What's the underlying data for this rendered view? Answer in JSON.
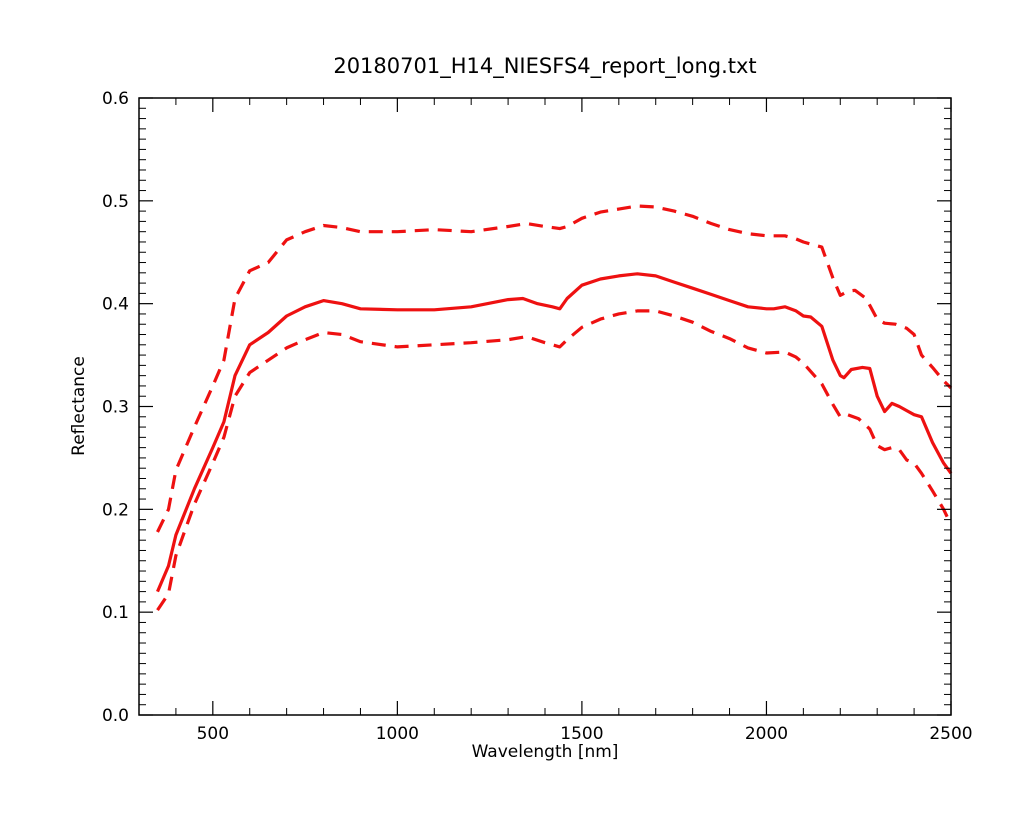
{
  "chart_data": {
    "type": "line",
    "title": "20180701_H14_NIESFS4_report_long.txt",
    "xlabel": "Wavelength [nm]",
    "ylabel": "Reflectance",
    "xlim": [
      300,
      2500
    ],
    "ylim": [
      0.0,
      0.6
    ],
    "x_ticks": [
      500,
      1000,
      1500,
      2000,
      2500
    ],
    "x_tick_labels": [
      "500",
      "1000",
      "1500",
      "2000",
      "2500"
    ],
    "y_ticks": [
      0.0,
      0.1,
      0.2,
      0.3,
      0.4,
      0.5,
      0.6
    ],
    "y_tick_labels": [
      "0.0",
      "0.1",
      "0.2",
      "0.3",
      "0.4",
      "0.5",
      "0.6"
    ],
    "grid": false,
    "legend": "none",
    "color": "#ee1111",
    "series": [
      {
        "style": "solid",
        "x": [
          350,
          380,
          400,
          450,
          500,
          530,
          560,
          600,
          650,
          700,
          750,
          800,
          850,
          900,
          1000,
          1100,
          1200,
          1300,
          1340,
          1380,
          1420,
          1440,
          1460,
          1500,
          1550,
          1600,
          1650,
          1700,
          1750,
          1800,
          1850,
          1900,
          1950,
          2000,
          2020,
          2050,
          2080,
          2100,
          2120,
          2150,
          2180,
          2200,
          2210,
          2230,
          2260,
          2280,
          2300,
          2320,
          2340,
          2360,
          2380,
          2400,
          2420,
          2450,
          2480,
          2500
        ],
        "y": [
          0.12,
          0.145,
          0.175,
          0.22,
          0.26,
          0.285,
          0.33,
          0.36,
          0.372,
          0.388,
          0.397,
          0.403,
          0.4,
          0.395,
          0.394,
          0.394,
          0.397,
          0.404,
          0.405,
          0.4,
          0.397,
          0.395,
          0.405,
          0.418,
          0.424,
          0.427,
          0.429,
          0.427,
          0.421,
          0.415,
          0.409,
          0.403,
          0.397,
          0.395,
          0.395,
          0.397,
          0.393,
          0.388,
          0.387,
          0.378,
          0.345,
          0.33,
          0.328,
          0.336,
          0.338,
          0.337,
          0.31,
          0.295,
          0.303,
          0.3,
          0.296,
          0.292,
          0.29,
          0.265,
          0.245,
          0.235
        ]
      },
      {
        "style": "dashed",
        "x": [
          350,
          380,
          400,
          450,
          500,
          530,
          560,
          600,
          650,
          700,
          750,
          800,
          850,
          900,
          1000,
          1100,
          1200,
          1300,
          1350,
          1400,
          1440,
          1460,
          1500,
          1550,
          1600,
          1650,
          1700,
          1750,
          1800,
          1850,
          1900,
          1950,
          2000,
          2050,
          2080,
          2100,
          2150,
          2180,
          2200,
          2220,
          2240,
          2270,
          2300,
          2320,
          2350,
          2380,
          2400,
          2420,
          2450,
          2480,
          2500
        ],
        "y": [
          0.178,
          0.2,
          0.238,
          0.28,
          0.32,
          0.345,
          0.405,
          0.432,
          0.44,
          0.462,
          0.47,
          0.476,
          0.474,
          0.47,
          0.47,
          0.472,
          0.47,
          0.475,
          0.478,
          0.475,
          0.473,
          0.475,
          0.483,
          0.489,
          0.492,
          0.495,
          0.494,
          0.49,
          0.485,
          0.478,
          0.472,
          0.468,
          0.466,
          0.466,
          0.463,
          0.46,
          0.455,
          0.425,
          0.408,
          0.412,
          0.413,
          0.405,
          0.385,
          0.381,
          0.38,
          0.376,
          0.37,
          0.35,
          0.338,
          0.325,
          0.318
        ]
      },
      {
        "style": "dashed",
        "x": [
          350,
          380,
          400,
          450,
          500,
          530,
          560,
          600,
          650,
          700,
          750,
          800,
          850,
          900,
          1000,
          1100,
          1200,
          1300,
          1350,
          1400,
          1440,
          1460,
          1500,
          1550,
          1600,
          1650,
          1700,
          1750,
          1800,
          1850,
          1900,
          1950,
          2000,
          2050,
          2080,
          2100,
          2150,
          2180,
          2200,
          2220,
          2250,
          2280,
          2300,
          2320,
          2340,
          2360,
          2380,
          2400,
          2420,
          2450,
          2480,
          2500
        ],
        "y": [
          0.102,
          0.118,
          0.155,
          0.205,
          0.245,
          0.27,
          0.31,
          0.333,
          0.345,
          0.357,
          0.365,
          0.372,
          0.37,
          0.363,
          0.358,
          0.36,
          0.362,
          0.365,
          0.368,
          0.362,
          0.358,
          0.365,
          0.377,
          0.385,
          0.39,
          0.393,
          0.393,
          0.388,
          0.382,
          0.373,
          0.366,
          0.357,
          0.352,
          0.353,
          0.348,
          0.342,
          0.322,
          0.302,
          0.29,
          0.292,
          0.288,
          0.278,
          0.262,
          0.258,
          0.26,
          0.258,
          0.248,
          0.245,
          0.235,
          0.218,
          0.2,
          0.185
        ]
      }
    ]
  }
}
